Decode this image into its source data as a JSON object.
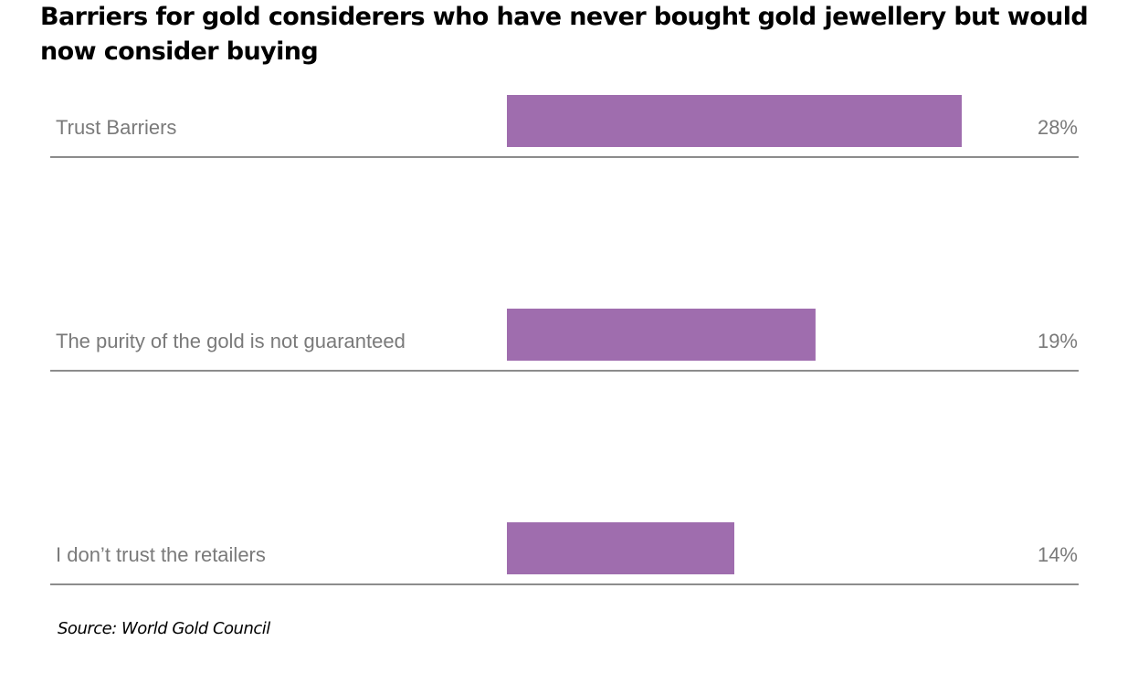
{
  "chart_data": {
    "type": "bar",
    "orientation": "horizontal",
    "title": "Barriers for gold considerers who have never bought gold jewellery but would now consider buying",
    "categories": [
      "Trust Barriers",
      "The purity of the gold is not guaranteed",
      "I don’t trust the retailers"
    ],
    "values": [
      28,
      19,
      14
    ],
    "value_labels": [
      "28%",
      "19%",
      "14%"
    ],
    "unit": "%",
    "xlim": [
      0,
      28
    ],
    "bar_color": "#9f6dae",
    "separator_color": "#8c8c8c",
    "grid": false,
    "legend": "none",
    "source": "Source: World Gold Council"
  }
}
